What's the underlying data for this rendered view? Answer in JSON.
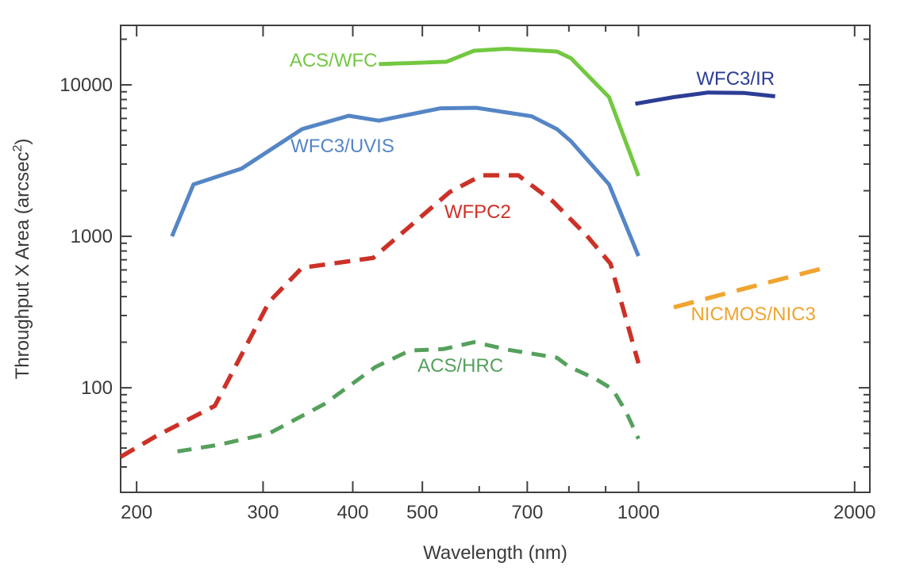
{
  "chart_data": {
    "type": "line",
    "title": "",
    "xlabel": "Wavelength (nm)",
    "ylabel": "Throughput X Area (arcsec²)",
    "xscale": "log",
    "yscale": "log",
    "xlim": [
      190,
      2100
    ],
    "ylim": [
      20.4,
      24700
    ],
    "grid": false,
    "legend_position": "inline-labels",
    "background": "#ffffff",
    "axis_color": "#3f3f3f",
    "tick_label_color": "#3a3a3a",
    "x_ticks": {
      "major": [
        200,
        300,
        400,
        500,
        700,
        1000,
        2000
      ],
      "major_labels": [
        "200",
        "300",
        "400",
        "500",
        "700",
        "1000",
        "2000"
      ],
      "minor": [
        600,
        800,
        900
      ]
    },
    "y_ticks": {
      "major": [
        100,
        1000,
        10000
      ],
      "major_labels": [
        "100",
        "1000",
        "10000"
      ],
      "minor": [
        30,
        40,
        50,
        60,
        70,
        80,
        90,
        200,
        300,
        400,
        500,
        600,
        700,
        800,
        900,
        2000,
        3000,
        4000,
        5000,
        6000,
        7000,
        8000,
        9000,
        20000
      ]
    },
    "series": [
      {
        "id": "acs-wfc",
        "name": "ACS/WFC",
        "color": "#72c840",
        "line_style": "solid",
        "line_width": 5,
        "label_anchor": [
          376,
          14500
        ],
        "points": [
          [
            435,
            13700
          ],
          [
            540,
            14200
          ],
          [
            590,
            16800
          ],
          [
            655,
            17300
          ],
          [
            700,
            17000
          ],
          [
            770,
            16600
          ],
          [
            805,
            15000
          ],
          [
            910,
            8300
          ],
          [
            1000,
            2500
          ]
        ]
      },
      {
        "id": "wfc3-uvis",
        "name": "WFC3/UVIS",
        "color": "#5585c5",
        "line_style": "solid",
        "line_width": 5,
        "label_anchor": [
          387,
          3950
        ],
        "points": [
          [
            224,
            1000
          ],
          [
            240,
            2200
          ],
          [
            280,
            2800
          ],
          [
            340,
            5100
          ],
          [
            395,
            6250
          ],
          [
            435,
            5800
          ],
          [
            530,
            7000
          ],
          [
            595,
            7050
          ],
          [
            710,
            6200
          ],
          [
            770,
            5100
          ],
          [
            805,
            4250
          ],
          [
            910,
            2200
          ],
          [
            1000,
            740
          ]
        ]
      },
      {
        "id": "wfc3-ir",
        "name": "WFC3/IR",
        "color": "#2c3d94",
        "line_style": "solid",
        "line_width": 5,
        "label_anchor": [
          1365,
          11000
        ],
        "points": [
          [
            990,
            7500
          ],
          [
            1120,
            8300
          ],
          [
            1250,
            8900
          ],
          [
            1400,
            8850
          ],
          [
            1550,
            8400
          ]
        ]
      },
      {
        "id": "wfpc2",
        "name": "WFPC2",
        "color": "#cc3128",
        "line_style": "dashed",
        "dash": "20 12",
        "line_width": 5.5,
        "label_anchor": [
          597,
          1450
        ],
        "points": [
          [
            190,
            35
          ],
          [
            213,
            48
          ],
          [
            257,
            76
          ],
          [
            306,
            370
          ],
          [
            340,
            620
          ],
          [
            427,
            720
          ],
          [
            484,
            1200
          ],
          [
            546,
            1960
          ],
          [
            605,
            2530
          ],
          [
            680,
            2530
          ],
          [
            760,
            1700
          ],
          [
            847,
            1010
          ],
          [
            914,
            660
          ],
          [
            1000,
            145
          ]
        ]
      },
      {
        "id": "acs-hrc",
        "name": "ACS/HRC",
        "color": "#55a05c",
        "line_style": "dashed",
        "dash": "18 12",
        "line_width": 5,
        "label_anchor": [
          565,
          140
        ],
        "points": [
          [
            228,
            38
          ],
          [
            260,
            42
          ],
          [
            306,
            50
          ],
          [
            365,
            78
          ],
          [
            430,
            137
          ],
          [
            480,
            176
          ],
          [
            535,
            180
          ],
          [
            590,
            200
          ],
          [
            660,
            178
          ],
          [
            770,
            158
          ],
          [
            800,
            138
          ],
          [
            870,
            115
          ],
          [
            920,
            98
          ],
          [
            960,
            70
          ],
          [
            1000,
            46
          ]
        ]
      },
      {
        "id": "nicmos-nic3",
        "name": "NICMOS/NIC3",
        "color": "#f0a430",
        "line_style": "dashed",
        "dash": "26 15",
        "line_width": 5.5,
        "label_anchor": [
          1445,
          307
        ],
        "points": [
          [
            1120,
            340
          ],
          [
            1300,
            410
          ],
          [
            1500,
            490
          ],
          [
            1820,
            620
          ]
        ]
      }
    ]
  }
}
